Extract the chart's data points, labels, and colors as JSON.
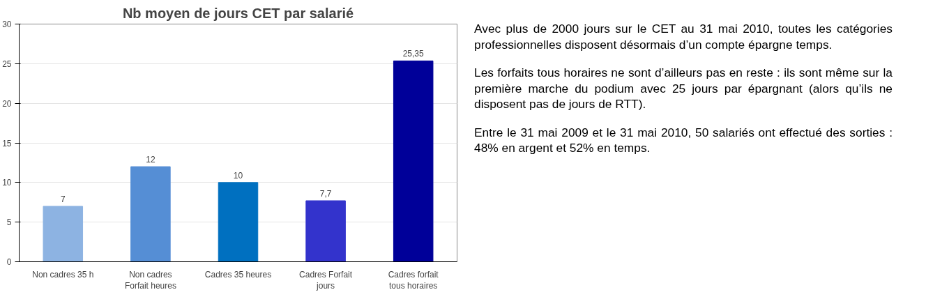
{
  "chart_data": [
    {
      "type": "bar",
      "title": "Nb moyen de jours CET par salarié",
      "categories": [
        "Non cadres 35 h",
        "Non cadres Forfait heures",
        "Cadres 35 heures",
        "Cadres Forfait jours",
        "Cadres forfait tous horaires"
      ],
      "values": [
        7,
        12,
        10,
        7.7,
        25.35
      ],
      "colors": [
        "#8db3e2",
        "#558ed5",
        "#0070c0",
        "#3333cc",
        "#000099"
      ],
      "value_labels": [
        "7",
        "12",
        "10",
        "7,7",
        "25,35"
      ],
      "ylim": [
        0,
        30
      ],
      "yticks": [
        0,
        5,
        10,
        15,
        20,
        25,
        30
      ],
      "grid": "y"
    },
    {
      "type": "other",
      "annotations": [
        "Avec plus de 2000 jours sur le CET au 31 mai 2010, toutes les catégories professionnelles disposent désormais d’un compte épargne temps.",
        "Les forfaits tous horaires ne sont d’ailleurs pas en reste : ils sont même sur la première marche du podium avec 25 jours par épargnant (alors qu’ils ne  disposent pas de jours de RTT).",
        "Entre le 31 mai 2009 et le 31 mai 2010, 50 salariés ont effectué des sorties : 48% en argent et 52% en temps."
      ]
    }
  ]
}
